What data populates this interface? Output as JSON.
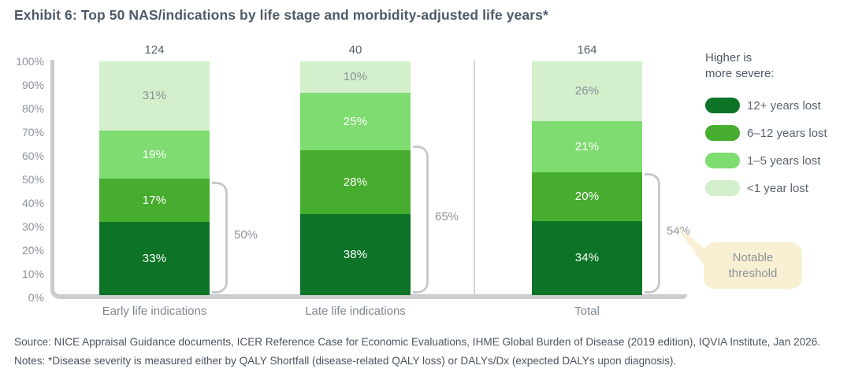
{
  "title": "Exhibit 6: Top 50 NAS/indications by life stage and morbidity-adjusted life years*",
  "chart_data": {
    "type": "bar",
    "stacked": true,
    "title": "Exhibit 6: Top 50 NAS/indications by life stage and morbidity-adjusted life years*",
    "categories": [
      "Early life indications",
      "Late life indications",
      "Total"
    ],
    "totals": [
      "124",
      "40",
      "164"
    ],
    "series": [
      {
        "name": "12+ years lost",
        "color": "#0d7427",
        "label_color": "#ffffff",
        "values": [
          33,
          38,
          34
        ]
      },
      {
        "name": "6–12 years lost",
        "color": "#47ad2f",
        "label_color": "#ffffff",
        "values": [
          17,
          28,
          20
        ]
      },
      {
        "name": "1–5 years lost",
        "color": "#7edc70",
        "label_color": "#ffffff",
        "values": [
          19,
          25,
          21
        ]
      },
      {
        "name": "<1 year lost",
        "color": "#d3efcc",
        "label_color": "#8a9097",
        "values": [
          31,
          10,
          26
        ]
      }
    ],
    "brackets": [
      {
        "bar": 0,
        "span": 50,
        "label": "50%"
      },
      {
        "bar": 1,
        "span": 66,
        "label": "65%"
      },
      {
        "bar": 2,
        "span": 54,
        "label": "54%"
      }
    ],
    "y_ticks": [
      "100%",
      "90%",
      "80%",
      "70%",
      "60%",
      "50%",
      "40%",
      "30%",
      "20%",
      "10%",
      "0%"
    ],
    "ylim": [
      0,
      100
    ],
    "ylabel": "",
    "xlabel": "",
    "grid": false,
    "legend_position": "right"
  },
  "legend": {
    "heading_line1": "Higher is",
    "heading_line2": "more severe:"
  },
  "callout": {
    "line1": "Notable",
    "line2": "threshold",
    "bg_color": "#f9efd2"
  },
  "source": "Source: NICE Appraisal Guidance documents, ICER Reference Case for Economic Evaluations, IHME Global Burden of Disease (2019 edition), IQVIA Institute, Jan 2026.",
  "notes": "Notes: *Disease severity is measured either by QALY Shortfall (disease-related QALY loss) or DALYs/Dx (expected DALYs upon diagnosis)."
}
